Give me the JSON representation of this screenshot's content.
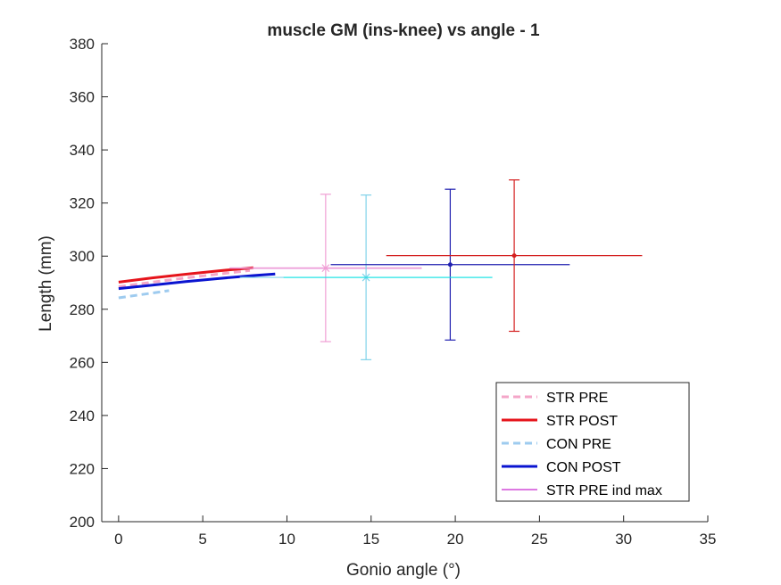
{
  "chart_data": {
    "type": "line",
    "title": "muscle GM (ins-knee) vs angle - 1",
    "xlabel": "Gonio angle (°)",
    "ylabel": "Length (mm)",
    "xlim": [
      -1,
      35
    ],
    "ylim": [
      200,
      380
    ],
    "xticks": [
      0,
      5,
      10,
      15,
      20,
      25,
      30,
      35
    ],
    "yticks": [
      200,
      220,
      240,
      260,
      280,
      300,
      320,
      340,
      360,
      380
    ],
    "xtick_labels": [
      "0",
      "5",
      "10",
      "15",
      "20",
      "25",
      "30",
      "35"
    ],
    "ytick_labels": [
      "200",
      "220",
      "240",
      "260",
      "280",
      "300",
      "320",
      "340",
      "360",
      "380"
    ],
    "grid": false,
    "legend_position": "bottom-right",
    "series": [
      {
        "name": "STR PRE",
        "color": "#f4a6c8",
        "dash": "dashed",
        "width": 3,
        "x": [
          0,
          2,
          4,
          6,
          7.8
        ],
        "y": [
          288.5,
          290.2,
          291.8,
          293.3,
          294.6
        ]
      },
      {
        "name": "STR POST",
        "color": "#e6141b",
        "dash": "solid",
        "width": 3,
        "x": [
          0,
          2,
          4,
          6,
          8
        ],
        "y": [
          290.2,
          291.8,
          293.2,
          294.5,
          295.6
        ]
      },
      {
        "name": "CON PRE",
        "color": "#9ecbef",
        "dash": "dashed",
        "width": 3,
        "x": [
          0,
          1,
          2,
          3
        ],
        "y": [
          284.3,
          285.2,
          286.1,
          287.0
        ]
      },
      {
        "name": "CON POST",
        "color": "#0a14d0",
        "dash": "solid",
        "width": 3,
        "x": [
          0,
          2,
          4,
          6,
          8,
          9.3
        ],
        "y": [
          287.8,
          289.1,
          290.4,
          291.6,
          292.7,
          293.3
        ]
      },
      {
        "name": "STR PRE ind max",
        "color": "#d24dd8",
        "dash": "solid",
        "width": 1.5,
        "x": [
          6.6,
          18
        ],
        "y": [
          295.5,
          295.5
        ]
      }
    ],
    "error_points": [
      {
        "series": "STR PRE",
        "color": "#f09fd4",
        "marker": "x",
        "x": 12.3,
        "y": 295.5,
        "xerr": [
          5.7,
          5.7
        ],
        "yerr": [
          27.7,
          27.8
        ]
      },
      {
        "series": "CON PRE",
        "color": "#80d3ea",
        "marker": "x",
        "x": 14.7,
        "y": 292.0,
        "xerr": [
          7.5,
          7.5
        ],
        "yerr": [
          31.0,
          31.0
        ]
      },
      {
        "series": "CON POST",
        "color": "#2020b0",
        "marker": "dot",
        "x": 19.7,
        "y": 296.8,
        "xerr": [
          7.1,
          7.1
        ],
        "yerr": [
          28.4,
          28.4
        ]
      },
      {
        "series": "STR POST",
        "color": "#d42020",
        "marker": "dot",
        "x": 23.5,
        "y": 300.2,
        "xerr": [
          7.6,
          7.6
        ],
        "yerr": [
          28.5,
          28.5
        ]
      },
      {
        "series": "CON PRE line",
        "color": "#14e4e4",
        "marker": "none",
        "x": 14.7,
        "y": 292.0,
        "xerr": [
          4.9,
          7.5
        ],
        "yerr": [
          0,
          0
        ]
      }
    ]
  }
}
